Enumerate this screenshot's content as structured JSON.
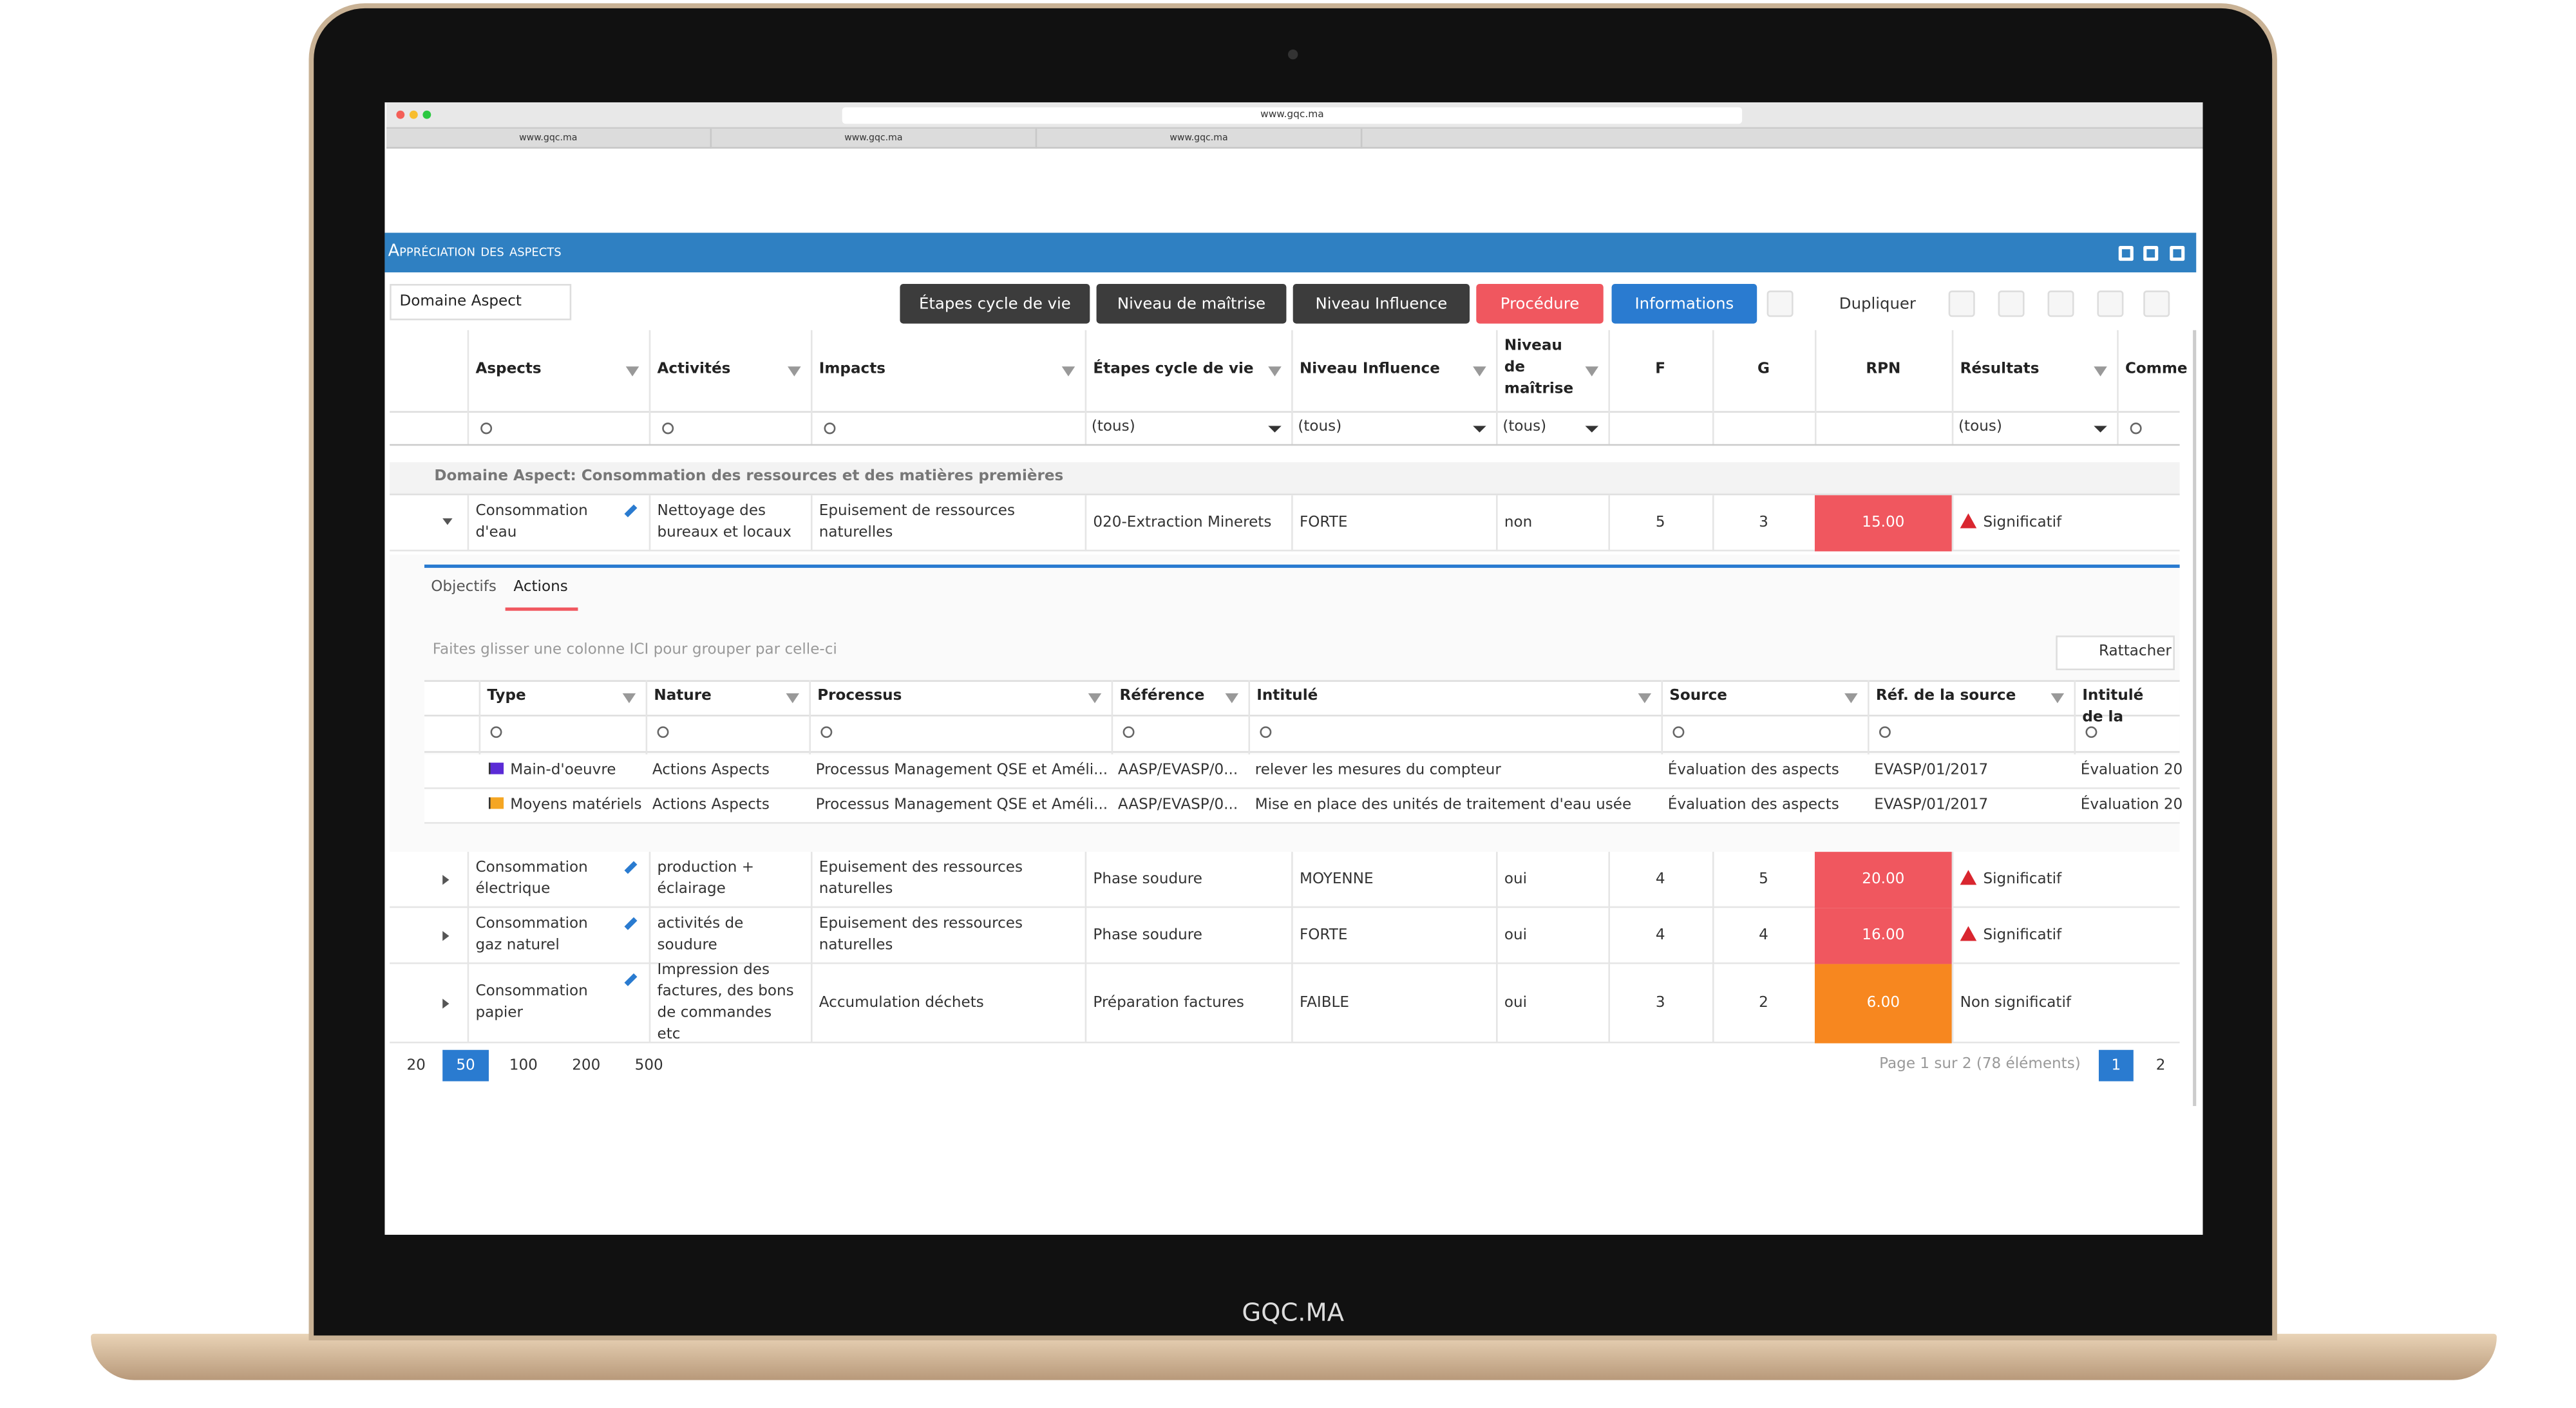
{
  "laptop": {
    "label": "GQC.MA"
  },
  "browser": {
    "url": "www.gqc.ma",
    "tabs": [
      "www.gqc.ma",
      "www.gqc.ma",
      "www.gqc.ma"
    ]
  },
  "window": {
    "title": "Appréciation des aspects"
  },
  "toolbar": {
    "group_chip": "Domaine Aspect",
    "buttons": [
      "Étapes cycle de vie",
      "Niveau de maîtrise",
      "Niveau Influence",
      "Procédure",
      "Informations",
      "Dupliquer"
    ]
  },
  "grid": {
    "columns": [
      "Aspects",
      "Activités",
      "Impacts",
      "Étapes cycle de vie",
      "Niveau Influence",
      "Niveau de maîtrise",
      "F",
      "G",
      "RPN",
      "Résultats",
      "Comme"
    ],
    "filters": [
      "(tous)",
      "(tous)",
      "(tous)",
      "(tous)"
    ],
    "group_row": "Domaine Aspect: Consommation des ressources et des matières premières",
    "rows": [
      [
        "Consommation d'eau",
        "Nettoyage des bureaux et locaux",
        "Epuisement de ressources naturelles",
        "020-Extraction Minerets",
        "FORTE",
        "non",
        "5",
        "3",
        "15.00",
        "Significatif"
      ],
      [
        "Consommation électrique",
        "production + éclairage",
        "Epuisement des ressources naturelles",
        "Phase soudure",
        "MOYENNE",
        "oui",
        "4",
        "5",
        "20.00",
        "Significatif"
      ],
      [
        "Consommation gaz naturel",
        "activités de soudure",
        "Epuisement des ressources naturelles",
        "Phase soudure",
        "FORTE",
        "oui",
        "4",
        "4",
        "16.00",
        "Significatif"
      ],
      [
        "Consommation papier",
        "Impression des factures, des bons de commandes etc",
        "Accumulation déchets",
        "Préparation factures",
        "FAIBLE",
        "oui",
        "3",
        "2",
        "6.00",
        "Non significatif"
      ]
    ],
    "rpn_colors": [
      "#f0575f",
      "#f0575f",
      "#f0575f",
      "#f7871f"
    ]
  },
  "detail": {
    "tabs": [
      "Objectifs",
      "Actions"
    ],
    "group_hint": "Faites glisser une colonne ICI pour grouper par celle-ci",
    "attach_button": "Rattacher",
    "columns": [
      "Type",
      "Nature",
      "Processus",
      "Référence",
      "Intitulé",
      "Source",
      "Réf. de la source",
      "Intitulé de la"
    ],
    "rows": [
      [
        "Main-d'oeuvre",
        "Actions Aspects",
        "Processus Management QSE et Améli...",
        "AASP/EVASP/0...",
        "relever les mesures du compteur",
        "Évaluation des aspects",
        "EVASP/01/2017",
        "Évaluation 20"
      ],
      [
        "Moyens matériels",
        "Actions Aspects",
        "Processus Management QSE et Améli...",
        "AASP/EVASP/0...",
        "Mise en place des unités de traitement d'eau usée",
        "Évaluation des aspects",
        "EVASP/01/2017",
        "Évaluation 20"
      ]
    ],
    "flag_colors": [
      "#5b2bd6",
      "#f5a623"
    ]
  },
  "pager": {
    "sizes": [
      "20",
      "50",
      "100",
      "200",
      "500"
    ],
    "info": "Page 1 sur 2 (78 éléments)",
    "pages": [
      "1",
      "2"
    ]
  }
}
